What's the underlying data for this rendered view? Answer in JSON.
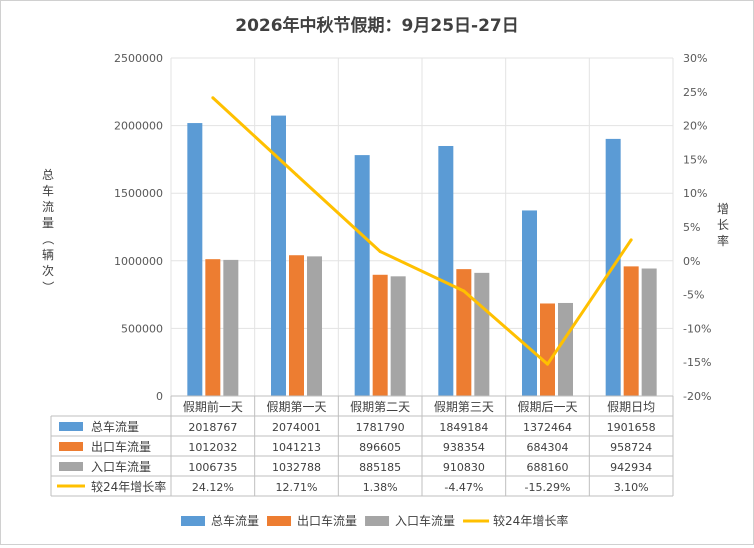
{
  "chart_data": {
    "type": "bar",
    "title": "2026年中秋节假期：9月25日-27日",
    "ylabel": "总车流量（辆次）",
    "y2label": "增长率",
    "categories": [
      "假期前一天",
      "假期第一天",
      "假期第二天",
      "假期第三天",
      "假期后一天",
      "假期日均"
    ],
    "ylim": [
      0,
      2500000
    ],
    "yticks": [
      0,
      500000,
      1000000,
      1500000,
      2000000,
      2500000
    ],
    "y2lim": [
      -20,
      30
    ],
    "y2ticks": [
      -20,
      -15,
      -10,
      -5,
      0,
      5,
      10,
      15,
      20,
      25,
      30
    ],
    "series": [
      {
        "name": "总车流量",
        "kind": "bar",
        "axis": "left",
        "color": "#5b9bd5",
        "values": [
          2018767,
          2074001,
          1781790,
          1849184,
          1372464,
          1901658
        ],
        "labels": [
          "2018767",
          "2074001",
          "1781790",
          "1849184",
          "1372464",
          "1901658"
        ]
      },
      {
        "name": "出口车流量",
        "kind": "bar",
        "axis": "left",
        "color": "#ed7d31",
        "values": [
          1012032,
          1041213,
          896605,
          938354,
          684304,
          958724
        ],
        "labels": [
          "1012032",
          "1041213",
          "896605",
          "938354",
          "684304",
          "958724"
        ]
      },
      {
        "name": "入口车流量",
        "kind": "bar",
        "axis": "left",
        "color": "#a5a5a5",
        "values": [
          1006735,
          1032788,
          885185,
          910830,
          688160,
          942934
        ],
        "labels": [
          "1006735",
          "1032788",
          "885185",
          "910830",
          "688160",
          "942934"
        ]
      },
      {
        "name": "较24年增长率",
        "kind": "line",
        "axis": "right",
        "color": "#ffc000",
        "values": [
          24.12,
          12.71,
          1.38,
          -4.47,
          -15.29,
          3.1
        ],
        "labels": [
          "24.12%",
          "12.71%",
          "1.38%",
          "-4.47%",
          "-15.29%",
          "3.10%"
        ]
      }
    ],
    "grid": true,
    "legend": "bottom",
    "data_table": true
  }
}
